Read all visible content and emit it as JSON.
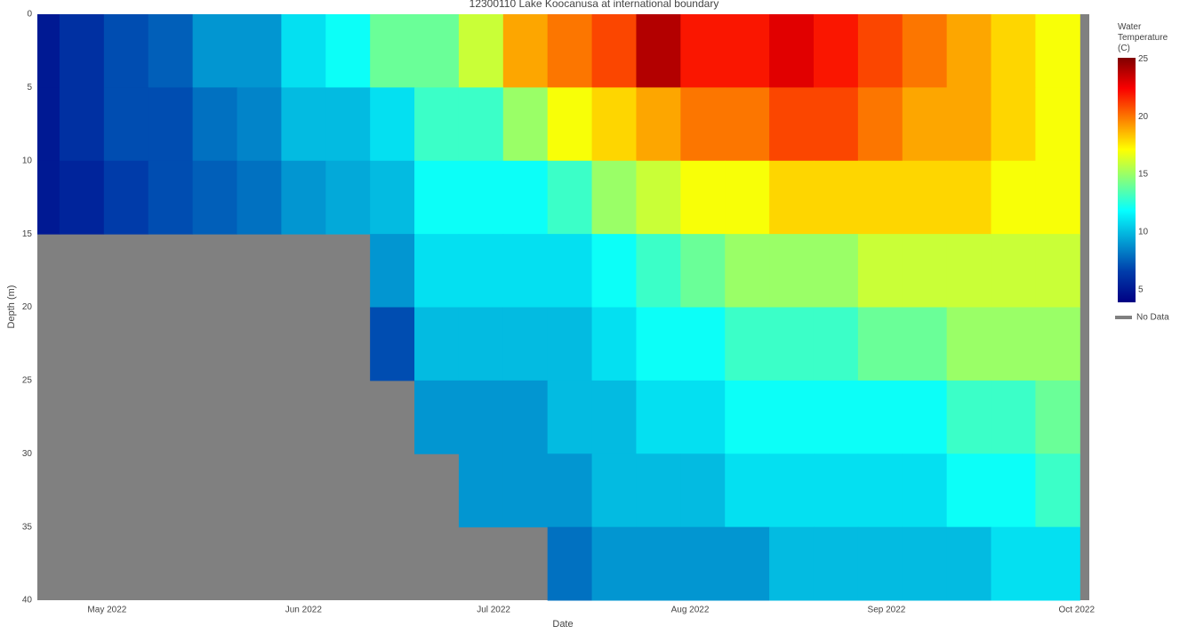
{
  "chart_data": {
    "type": "heatmap",
    "title": "12300110 Lake Koocanusa at international boundary",
    "xlabel": "Date",
    "ylabel": "Depth (m)",
    "colorbar_title": "Water Temperature (C)",
    "legend": [
      {
        "name": "No Data",
        "color": "#808080"
      }
    ],
    "x": [
      "2022-04-20",
      "2022-04-27",
      "2022-05-04",
      "2022-05-11",
      "2022-05-18",
      "2022-05-25",
      "2022-06-01",
      "2022-06-08",
      "2022-06-15",
      "2022-06-22",
      "2022-06-29",
      "2022-07-06",
      "2022-07-13",
      "2022-07-20",
      "2022-07-27",
      "2022-08-03",
      "2022-08-10",
      "2022-08-17",
      "2022-08-24",
      "2022-08-31",
      "2022-09-07",
      "2022-09-14",
      "2022-09-21",
      "2022-09-28"
    ],
    "y": [
      2.5,
      7.5,
      12.5,
      17.5,
      22.5,
      27.5,
      32.5,
      37.5
    ],
    "z": [
      [
        5,
        6,
        7,
        7.5,
        9,
        9,
        11,
        12,
        14,
        14,
        16,
        19,
        20,
        21,
        24,
        22,
        22,
        23,
        22,
        21,
        20,
        19,
        18,
        17
      ],
      [
        5,
        6,
        7,
        7,
        8,
        8.5,
        10,
        10,
        11,
        13,
        13,
        15,
        17,
        18,
        19,
        20,
        20,
        21,
        21,
        20,
        19,
        19,
        18,
        17
      ],
      [
        5,
        5.5,
        6.5,
        7,
        7.5,
        8,
        9,
        9.5,
        10,
        12,
        12,
        12,
        13,
        15,
        16,
        17,
        17,
        18,
        18,
        18,
        18,
        18,
        17,
        17
      ],
      [
        null,
        null,
        null,
        null,
        null,
        null,
        null,
        null,
        9,
        11,
        11,
        11,
        11,
        12,
        13,
        14,
        15,
        15,
        15,
        16,
        16,
        16,
        16,
        16
      ],
      [
        null,
        null,
        null,
        null,
        null,
        null,
        null,
        null,
        7,
        10,
        10,
        10,
        10,
        11,
        12,
        12,
        13,
        13,
        13,
        14,
        14,
        15,
        15,
        15
      ],
      [
        null,
        null,
        null,
        null,
        null,
        null,
        null,
        null,
        null,
        9,
        9,
        9,
        10,
        10,
        11,
        11,
        12,
        12,
        12,
        12,
        12,
        13,
        13,
        14
      ],
      [
        null,
        null,
        null,
        null,
        null,
        null,
        null,
        null,
        null,
        null,
        9,
        9,
        9,
        10,
        10,
        10,
        11,
        11,
        11,
        11,
        11,
        12,
        12,
        13
      ],
      [
        null,
        null,
        null,
        null,
        null,
        null,
        null,
        null,
        null,
        null,
        null,
        null,
        8,
        9,
        9,
        9,
        9,
        10,
        10,
        10,
        10,
        10,
        11,
        11
      ]
    ],
    "xlim": [
      "2022-04-20",
      "2022-10-03"
    ],
    "xticks": [
      {
        "value": "2022-05-01",
        "label": "May 2022"
      },
      {
        "value": "2022-06-01",
        "label": "Jun 2022"
      },
      {
        "value": "2022-07-01",
        "label": "Jul 2022"
      },
      {
        "value": "2022-08-01",
        "label": "Aug 2022"
      },
      {
        "value": "2022-09-01",
        "label": "Sep 2022"
      },
      {
        "value": "2022-10-01",
        "label": "Oct 2022"
      }
    ],
    "ylim": [
      40,
      0
    ],
    "yticks": [
      0,
      5,
      10,
      15,
      20,
      25,
      30,
      35,
      40
    ],
    "zlim": [
      3.9,
      25.1
    ],
    "zticks": [
      5,
      10,
      15,
      20,
      25
    ],
    "colorscale": [
      [
        0,
        "#000083"
      ],
      [
        0.125,
        "#003caa"
      ],
      [
        0.375,
        "#05ffff"
      ],
      [
        0.625,
        "#ffff00"
      ],
      [
        0.875,
        "#fa0000"
      ],
      [
        1,
        "#800000"
      ]
    ],
    "grid": false
  }
}
